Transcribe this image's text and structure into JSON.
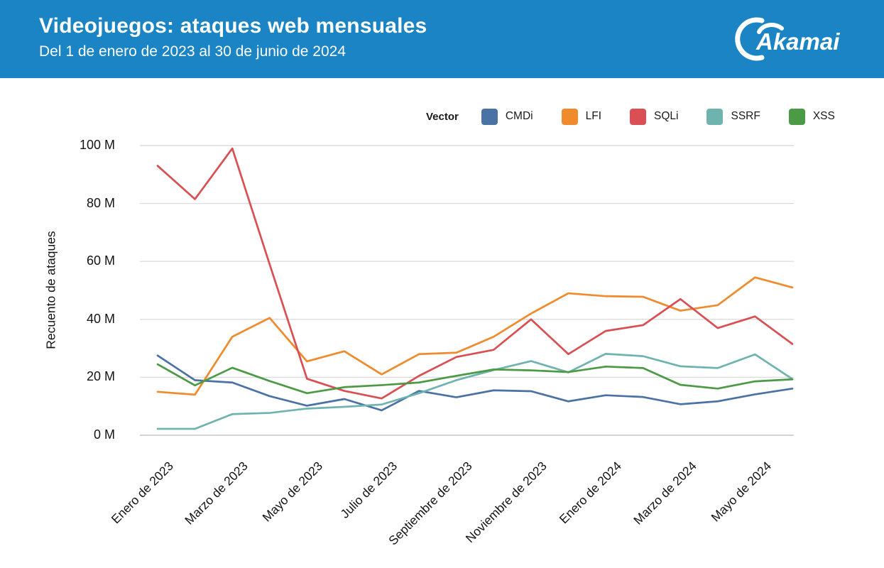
{
  "header": {
    "title": "Videojuegos: ataques web mensuales",
    "subtitle": "Del 1 de enero de 2023 al 30 de junio de 2024",
    "background_color": "#1a84c4",
    "logo_text": "Akamai"
  },
  "legend": {
    "title": "Vector",
    "entries": [
      "CMDi",
      "LFI",
      "SQLi",
      "SSRF",
      "XSS"
    ]
  },
  "chart_data": {
    "type": "line",
    "title": "Videojuegos: ataques web mensuales",
    "subtitle": "Del 1 de enero de 2023 al 30 de junio de 2024",
    "ylabel": "Recuento de ataques",
    "xlabel": "",
    "ylim": [
      0,
      100
    ],
    "grid": "horizontal",
    "legend_position": "top-right",
    "n_points": 18,
    "x_range_note": "monthly points from Enero 2023 to Junio 2024",
    "yticks": [
      {
        "value": 0,
        "label": "0 M"
      },
      {
        "value": 20,
        "label": "20 M"
      },
      {
        "value": 40,
        "label": "40 M"
      },
      {
        "value": 60,
        "label": "60 M"
      },
      {
        "value": 80,
        "label": "80 M"
      },
      {
        "value": 100,
        "label": "100 M"
      }
    ],
    "x_tick_labels": [
      {
        "index": 0,
        "label": "Enero de 2023"
      },
      {
        "index": 2,
        "label": "Marzo de 2023"
      },
      {
        "index": 4,
        "label": "Mayo de 2023"
      },
      {
        "index": 6,
        "label": "Julio de 2023"
      },
      {
        "index": 8,
        "label": "Septiembre de 2023"
      },
      {
        "index": 10,
        "label": "Noviembre de 2023"
      },
      {
        "index": 12,
        "label": "Enero de 2024"
      },
      {
        "index": 14,
        "label": "Marzo de 2024"
      },
      {
        "index": 16,
        "label": "Mayo de 2024"
      }
    ],
    "unit": "M (millones de ataques)",
    "series": [
      {
        "name": "CMDi",
        "color": "#4a72a4",
        "values": [
          27.5,
          19,
          18.2,
          13.5,
          10.2,
          12.5,
          8.6,
          15.3,
          13.1,
          15.5,
          15.2,
          11.7,
          13.8,
          13.2,
          10.7,
          11.7,
          14.1,
          16.1
        ]
      },
      {
        "name": "LFI",
        "color": "#f08b2d",
        "values": [
          15,
          14,
          34,
          40.5,
          25.5,
          29,
          21,
          28,
          28.5,
          34,
          42,
          49,
          48,
          47.8,
          43,
          44.9,
          54.5,
          51
        ]
      },
      {
        "name": "SQLi",
        "color": "#d94f53",
        "values": [
          93,
          81.5,
          99,
          59,
          19.5,
          15.3,
          12.7,
          20.5,
          27,
          29.5,
          40,
          28,
          36,
          38,
          47,
          37,
          41,
          31.5
        ]
      },
      {
        "name": "SSRF",
        "color": "#6fb3ae",
        "values": [
          2.2,
          2.2,
          7.3,
          7.7,
          9.2,
          9.8,
          10.6,
          14.5,
          19,
          22.5,
          25.6,
          21.7,
          28.1,
          27.3,
          23.8,
          23.2,
          27.9,
          19.4
        ]
      },
      {
        "name": "XSS",
        "color": "#4d9a46",
        "values": [
          24.5,
          17.2,
          23.3,
          18.7,
          14.5,
          16.6,
          17.3,
          18.2,
          20.5,
          22.7,
          22.4,
          21.8,
          23.7,
          23.2,
          17.4,
          16.1,
          18.6,
          19.3
        ]
      }
    ]
  }
}
